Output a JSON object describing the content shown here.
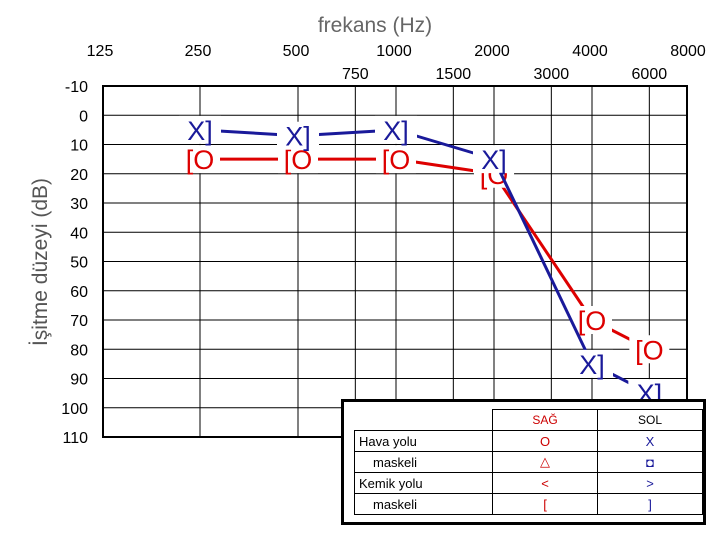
{
  "chart_data": {
    "type": "line",
    "title": "frekans (Hz)",
    "xlabel": "frekans (Hz)",
    "ylabel": "İşitme düzeyi (dB)",
    "x_ticks_top": [
      "125",
      "250",
      "500",
      "1000",
      "2000",
      "4000",
      "8000"
    ],
    "x_ticks_bottom": [
      "750",
      "1500",
      "3000",
      "6000"
    ],
    "y_ticks": [
      "-10",
      "0",
      "10",
      "20",
      "30",
      "40",
      "50",
      "60",
      "70",
      "80",
      "90",
      "100",
      "110"
    ],
    "ylim": [
      -10,
      110
    ],
    "grid": true,
    "series": [
      {
        "name": "SAĞ",
        "color": "#dd0000",
        "symbol": "[O",
        "x": [
          "250",
          "500",
          "1000",
          "2000",
          "4000",
          "6000"
        ],
        "y": [
          15,
          15,
          15,
          20,
          70,
          80
        ]
      },
      {
        "name": "SOL",
        "color": "#1a1a9a",
        "symbol": "X]",
        "x": [
          "250",
          "500",
          "1000",
          "2000",
          "4000",
          "6000"
        ],
        "y": [
          5,
          7,
          5,
          15,
          85,
          95
        ]
      }
    ]
  },
  "legend": {
    "col_right": "SAĞ",
    "col_left": "SOL",
    "rows": [
      {
        "label": "Hava yolu",
        "right": "O",
        "left": "X"
      },
      {
        "label": "maskeli",
        "right": "△",
        "left": "◘"
      },
      {
        "label": "Kemik yolu",
        "right": "<",
        "left": ">"
      },
      {
        "label": "maskeli",
        "right": "[",
        "left": "]"
      }
    ]
  }
}
